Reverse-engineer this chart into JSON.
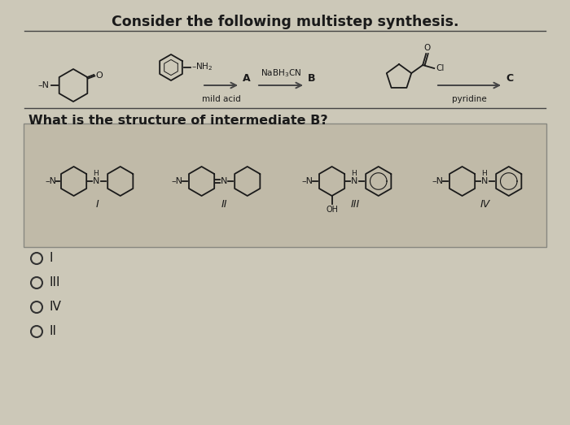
{
  "title": "Consider the following multistep synthesis.",
  "question": "What is the structure of intermediate B?",
  "bg_color": "#ccc8b8",
  "text_color": "#1a1a1a",
  "title_fontsize": 12.5,
  "question_fontsize": 11.5,
  "answer_fontsize": 11,
  "radio_options": [
    "I",
    "III",
    "IV",
    "II"
  ],
  "line_color": "#444444",
  "struct_color": "#1a1a1a"
}
